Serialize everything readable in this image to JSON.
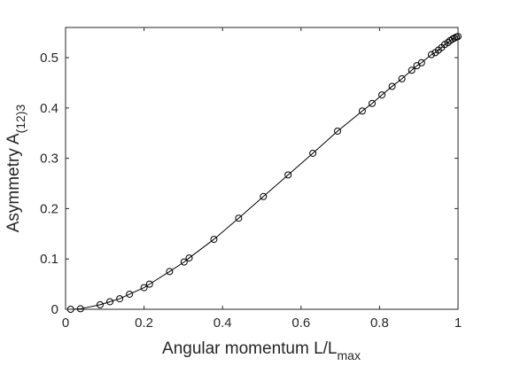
{
  "chart_data": {
    "type": "line",
    "xlabel": {
      "main": "Angular momentum L/L",
      "sub": "max"
    },
    "ylabel": {
      "main": "Asymmetry A",
      "sub": "(12)3"
    },
    "xlim": [
      0,
      1
    ],
    "ylim": [
      0,
      0.56
    ],
    "xticks": [
      0,
      0.2,
      0.4,
      0.6,
      0.8,
      1
    ],
    "xtick_labels": [
      "0",
      "0.2",
      "0.4",
      "0.6",
      "0.8",
      "1"
    ],
    "yticks": [
      0,
      0.1,
      0.2,
      0.3,
      0.4,
      0.5
    ],
    "ytick_labels": [
      "0",
      "0.1",
      "0.2",
      "0.3",
      "0.4",
      "0.5"
    ],
    "grid": false,
    "box": true,
    "colors": {
      "line": "#000000",
      "axis": "#262626",
      "background": "#ffffff"
    },
    "series": [
      {
        "style": "solid line with open circle markers",
        "x": [
          0.013,
          0.038,
          0.088,
          0.113,
          0.138,
          0.163,
          0.2,
          0.214,
          0.265,
          0.302,
          0.315,
          0.378,
          0.441,
          0.504,
          0.567,
          0.63,
          0.693,
          0.756,
          0.781,
          0.806,
          0.832,
          0.857,
          0.882,
          0.895,
          0.907,
          0.932,
          0.942,
          0.95,
          0.958,
          0.966,
          0.974,
          0.98,
          0.986,
          0.991,
          0.996,
          1.0
        ],
        "y": [
          0.0,
          0.001,
          0.009,
          0.015,
          0.021,
          0.03,
          0.043,
          0.05,
          0.075,
          0.094,
          0.102,
          0.139,
          0.181,
          0.224,
          0.267,
          0.31,
          0.354,
          0.394,
          0.409,
          0.426,
          0.443,
          0.458,
          0.475,
          0.484,
          0.49,
          0.506,
          0.51,
          0.515,
          0.52,
          0.526,
          0.53,
          0.534,
          0.537,
          0.539,
          0.541,
          0.542
        ]
      }
    ]
  }
}
